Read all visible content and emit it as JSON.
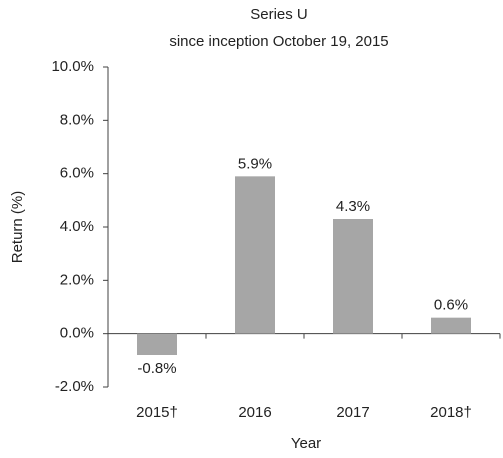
{
  "chart_data": {
    "type": "bar",
    "title": "Series U",
    "subtitle": "since inception October 19, 2015",
    "x_label": "Year",
    "y_label": "Return (%)",
    "categories": [
      "2015†",
      "2016",
      "2017",
      "2018†"
    ],
    "values": [
      -0.8,
      5.9,
      4.3,
      0.6
    ],
    "value_labels": [
      "-0.8%",
      "5.9%",
      "4.3%",
      "0.6%"
    ],
    "color": "#a6a6a6",
    "ylim": [
      -2,
      10
    ],
    "yticks": [
      {
        "value": -2,
        "label": "-2.0%"
      },
      {
        "value": 0,
        "label": "0.0%"
      },
      {
        "value": 2,
        "label": "2.0%"
      },
      {
        "value": 4,
        "label": "4.0%"
      },
      {
        "value": 6,
        "label": "6.0%"
      },
      {
        "value": 8,
        "label": "8.0%"
      },
      {
        "value": 10,
        "label": "10.0%"
      }
    ],
    "grid": false
  }
}
